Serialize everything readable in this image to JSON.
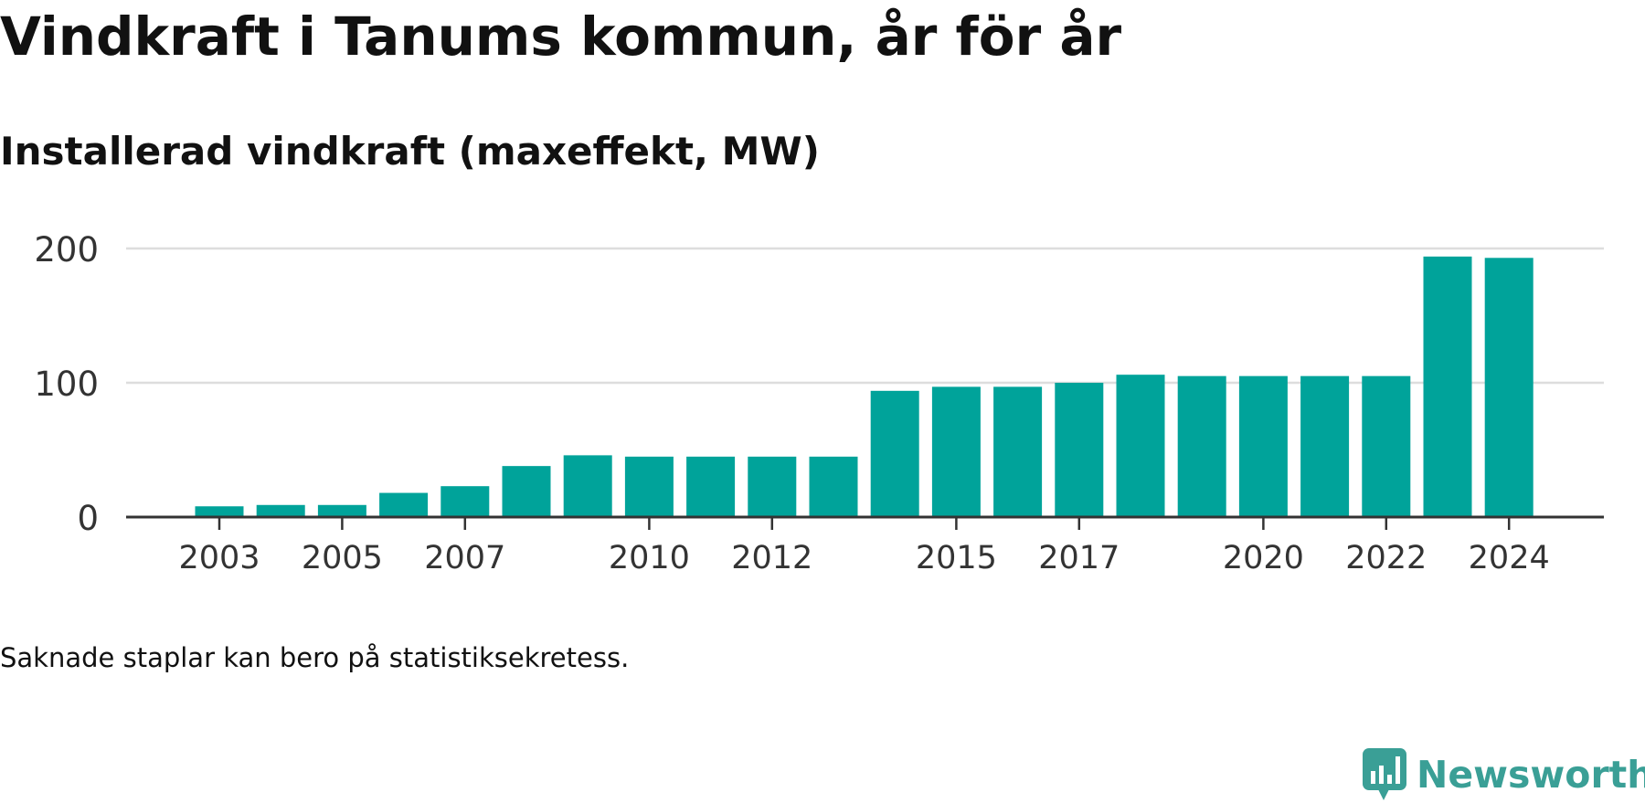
{
  "header": {
    "title": "Vindkraft i Tanums kommun, år för år",
    "subtitle": "Installerad vindkraft (maxeffekt, MW)"
  },
  "footer": {
    "note": "Saknade staplar kan bero på statistiksekretess.",
    "brand_name": "Newsworthy",
    "brand_icon": "newsworthy-logo-icon"
  },
  "colors": {
    "bar": "#00a39a",
    "axis": "#333333",
    "grid": "#dddddd",
    "brand": "#3a9f96"
  },
  "chart_data": {
    "type": "bar",
    "categories": [
      "2003",
      "2004",
      "2005",
      "2006",
      "2007",
      "2008",
      "2009",
      "2010",
      "2011",
      "2012",
      "2013",
      "2014",
      "2015",
      "2016",
      "2017",
      "2018",
      "2019",
      "2020",
      "2021",
      "2022",
      "2023",
      "2024"
    ],
    "values": [
      8,
      9,
      9,
      18,
      23,
      38,
      46,
      45,
      45,
      45,
      45,
      94,
      97,
      97,
      100,
      106,
      105,
      105,
      105,
      105,
      194,
      193
    ],
    "x_tick_labels": [
      "2003",
      "2005",
      "2007",
      "2010",
      "2012",
      "2015",
      "2017",
      "2020",
      "2022",
      "2024"
    ],
    "y_ticks": [
      0,
      100,
      200
    ],
    "ylim": [
      0,
      200
    ],
    "grid": true,
    "legend": "none",
    "title": "Vindkraft i Tanums kommun, år för år",
    "subtitle": "Installerad vindkraft (maxeffekt, MW)"
  }
}
